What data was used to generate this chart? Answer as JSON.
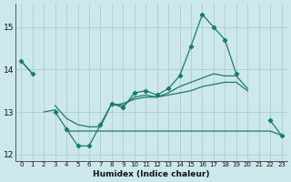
{
  "xlabel": "Humidex (Indice chaleur)",
  "x": [
    0,
    1,
    2,
    3,
    4,
    5,
    6,
    7,
    8,
    9,
    10,
    11,
    12,
    13,
    14,
    15,
    16,
    17,
    18,
    19,
    20,
    21,
    22,
    23
  ],
  "main_line": [
    14.2,
    13.9,
    null,
    13.0,
    12.6,
    12.2,
    12.2,
    12.7,
    13.2,
    13.1,
    13.45,
    13.5,
    13.4,
    13.55,
    13.85,
    14.55,
    15.3,
    15.0,
    14.7,
    13.9,
    null,
    null,
    12.8,
    12.45
  ],
  "descend_line": [
    14.2,
    13.9,
    null,
    13.15,
    12.85,
    12.7,
    12.65,
    12.65,
    13.2,
    13.15,
    13.35,
    13.4,
    13.35,
    13.45,
    13.6,
    13.7,
    13.8,
    13.9,
    13.85,
    13.85,
    13.55,
    null,
    null,
    null
  ],
  "flat_line": [
    null,
    null,
    null,
    null,
    12.55,
    12.55,
    12.55,
    12.55,
    12.55,
    12.55,
    12.55,
    12.55,
    12.55,
    12.55,
    12.55,
    12.55,
    12.55,
    12.55,
    12.55,
    12.55,
    12.55,
    12.55,
    12.55,
    12.45
  ],
  "rise_line": [
    null,
    null,
    13.0,
    13.05,
    null,
    null,
    null,
    null,
    13.15,
    13.2,
    13.3,
    13.35,
    13.35,
    13.4,
    13.45,
    13.5,
    13.6,
    13.65,
    13.7,
    13.7,
    13.5,
    null,
    null,
    null
  ],
  "ylim": [
    11.85,
    15.55
  ],
  "yticks": [
    12,
    13,
    14,
    15
  ],
  "bg_color": "#cce8ec",
  "line_color": "#1a7a6e",
  "grid_color": "#aacdd4"
}
